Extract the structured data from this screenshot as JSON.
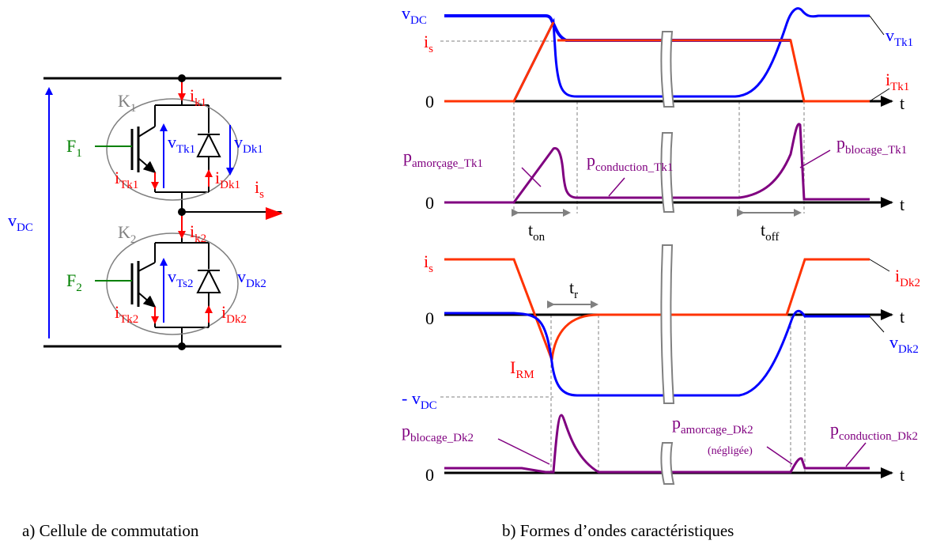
{
  "colors": {
    "blue": "#0000FF",
    "red": "#FF0000",
    "orange_red": "#FF3300",
    "purple": "#800080",
    "green": "#008000",
    "black": "#000000",
    "gray": "#808080"
  },
  "circuit": {
    "vdc": {
      "main": "v",
      "sub": "DC"
    },
    "k1": {
      "main": "K",
      "sub": "1"
    },
    "k2": {
      "main": "K",
      "sub": "2"
    },
    "f1": {
      "main": "F",
      "sub": "1"
    },
    "f2": {
      "main": "F",
      "sub": "2"
    },
    "ik1": {
      "main": "i",
      "sub": "k1"
    },
    "ik2": {
      "main": "i",
      "sub": "k2"
    },
    "vtk1": {
      "main": "v",
      "sub": "Tk1"
    },
    "vdk1": {
      "main": "v",
      "sub": "Dk1"
    },
    "itk1": {
      "main": "i",
      "sub": "Tk1"
    },
    "idk1": {
      "main": "i",
      "sub": "Dk1"
    },
    "is": {
      "main": "i",
      "sub": "s"
    },
    "vts2": {
      "main": "v",
      "sub": "Ts2"
    },
    "vdk2": {
      "main": "v",
      "sub": "Dk2"
    },
    "itk2": {
      "main": "i",
      "sub": "Tk2"
    },
    "idk2": {
      "main": "i",
      "sub": "Dk2"
    }
  },
  "waveforms": {
    "axis_t": "t",
    "zero": "0",
    "vdc_level": {
      "main": "v",
      "sub": "DC"
    },
    "is_level": {
      "main": "i",
      "sub": "s"
    },
    "vtk1": {
      "main": "v",
      "sub": "Tk1"
    },
    "itk1": {
      "main": "i",
      "sub": "Tk1"
    },
    "p_amorcage_tk1": {
      "main": "p",
      "sub": "amorçage_Tk1"
    },
    "p_conduction_tk1": {
      "main": "p",
      "sub": "conduction_Tk1"
    },
    "p_blocage_tk1": {
      "main": "p",
      "sub": "blocage_Tk1"
    },
    "ton": {
      "main": "t",
      "sub": "on"
    },
    "toff": {
      "main": "t",
      "sub": "off"
    },
    "is_level2": {
      "main": "i",
      "sub": "s"
    },
    "idk2": {
      "main": "i",
      "sub": "Dk2"
    },
    "tr": {
      "main": "t",
      "sub": "r"
    },
    "vdk2": {
      "main": "v",
      "sub": "Dk2"
    },
    "irm": {
      "main": "I",
      "sub": "RM"
    },
    "neg_vdc": {
      "main": "- v",
      "sub": "DC"
    },
    "p_blocage_dk2": {
      "main": "p",
      "sub": "blocage_Dk2"
    },
    "p_amorcage_dk2": {
      "main": "p",
      "sub": "amorcage_Dk2"
    },
    "negligee": "(négligée)",
    "p_conduction_dk2": {
      "main": "p",
      "sub": "conduction_Dk2"
    }
  },
  "captions": {
    "left": "a) Cellule de commutation",
    "right": "b) Formes d’ondes caractéristiques"
  }
}
